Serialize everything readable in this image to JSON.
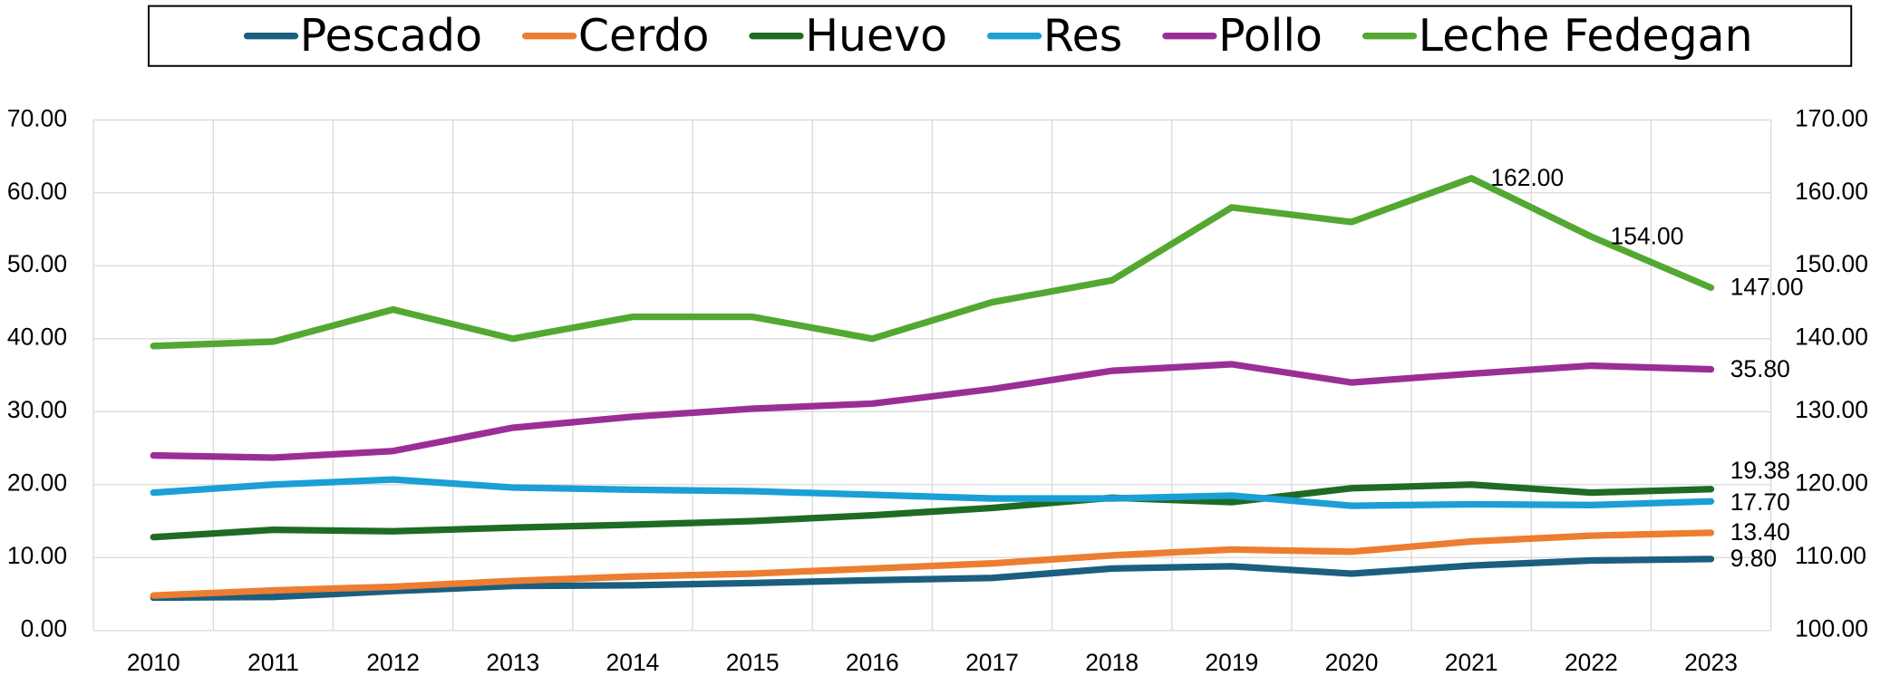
{
  "chart_data": {
    "type": "line",
    "categories": [
      "2010",
      "2011",
      "2012",
      "2013",
      "2014",
      "2015",
      "2016",
      "2017",
      "2018",
      "2019",
      "2020",
      "2021",
      "2022",
      "2023"
    ],
    "series": [
      {
        "name": "Pescado",
        "color": "#1b5e7e",
        "values": [
          4.5,
          4.6,
          5.4,
          6.1,
          6.2,
          6.5,
          6.9,
          7.2,
          8.5,
          8.8,
          7.8,
          8.9,
          9.6,
          9.8
        ],
        "value_labels": [
          null,
          null,
          null,
          null,
          null,
          null,
          null,
          null,
          null,
          null,
          null,
          null,
          null,
          "9.80"
        ]
      },
      {
        "name": "Cerdo",
        "color": "#ed7d31",
        "values": [
          4.8,
          5.5,
          6.0,
          6.8,
          7.4,
          7.8,
          8.5,
          9.2,
          10.3,
          11.1,
          10.8,
          12.2,
          13.0,
          13.4
        ],
        "value_labels": [
          null,
          null,
          null,
          null,
          null,
          null,
          null,
          null,
          null,
          null,
          null,
          null,
          null,
          "13.40"
        ]
      },
      {
        "name": "Huevo",
        "color": "#1e6b23",
        "values": [
          12.8,
          13.8,
          13.6,
          14.1,
          14.5,
          15.0,
          15.8,
          16.8,
          18.2,
          17.6,
          19.5,
          20.0,
          18.9,
          19.38
        ],
        "value_labels": [
          null,
          null,
          null,
          null,
          null,
          null,
          null,
          null,
          null,
          null,
          null,
          null,
          null,
          "19.38"
        ]
      },
      {
        "name": "Res",
        "color": "#1a9fd6",
        "values": [
          18.9,
          20.0,
          20.7,
          19.6,
          19.3,
          19.1,
          18.6,
          18.1,
          18.1,
          18.5,
          17.1,
          17.3,
          17.2,
          17.7
        ],
        "value_labels": [
          null,
          null,
          null,
          null,
          null,
          null,
          null,
          null,
          null,
          null,
          null,
          null,
          null,
          "17.70"
        ]
      },
      {
        "name": "Pollo",
        "color": "#9b2e96",
        "values": [
          24.0,
          23.7,
          24.6,
          27.8,
          29.3,
          30.4,
          31.1,
          33.1,
          35.6,
          36.5,
          34.0,
          35.2,
          36.3,
          35.8
        ],
        "value_labels": [
          null,
          null,
          null,
          null,
          null,
          null,
          null,
          null,
          null,
          null,
          null,
          null,
          null,
          "35.80"
        ]
      },
      {
        "name": "Leche Fedegan",
        "color": "#53a832",
        "axis": "y2",
        "values": [
          139,
          139.6,
          144,
          140,
          143,
          143,
          140,
          145,
          148,
          158,
          156,
          162,
          154,
          147
        ],
        "value_labels": [
          null,
          null,
          null,
          null,
          null,
          null,
          null,
          null,
          null,
          null,
          null,
          "162.00",
          "154.00",
          "147.00"
        ]
      }
    ],
    "ylim": [
      0,
      70
    ],
    "yticks": [
      {
        "value": 0,
        "label": "0.00"
      },
      {
        "value": 10,
        "label": "10.00"
      },
      {
        "value": 20,
        "label": "20.00"
      },
      {
        "value": 30,
        "label": "30.00"
      },
      {
        "value": 40,
        "label": "40.00"
      },
      {
        "value": 50,
        "label": "50.00"
      },
      {
        "value": 60,
        "label": "60.00"
      },
      {
        "value": 70,
        "label": "70.00"
      }
    ],
    "y2lim": [
      100,
      170
    ],
    "y2ticks": [
      {
        "value": 100,
        "label": "100.00"
      },
      {
        "value": 110,
        "label": "110.00"
      },
      {
        "value": 120,
        "label": "120.00"
      },
      {
        "value": 130,
        "label": "130.00"
      },
      {
        "value": 140,
        "label": "140.00"
      },
      {
        "value": 150,
        "label": "150.00"
      },
      {
        "value": 160,
        "label": "160.00"
      },
      {
        "value": 170,
        "label": "170.00"
      }
    ],
    "grid": true,
    "legend": "top"
  }
}
